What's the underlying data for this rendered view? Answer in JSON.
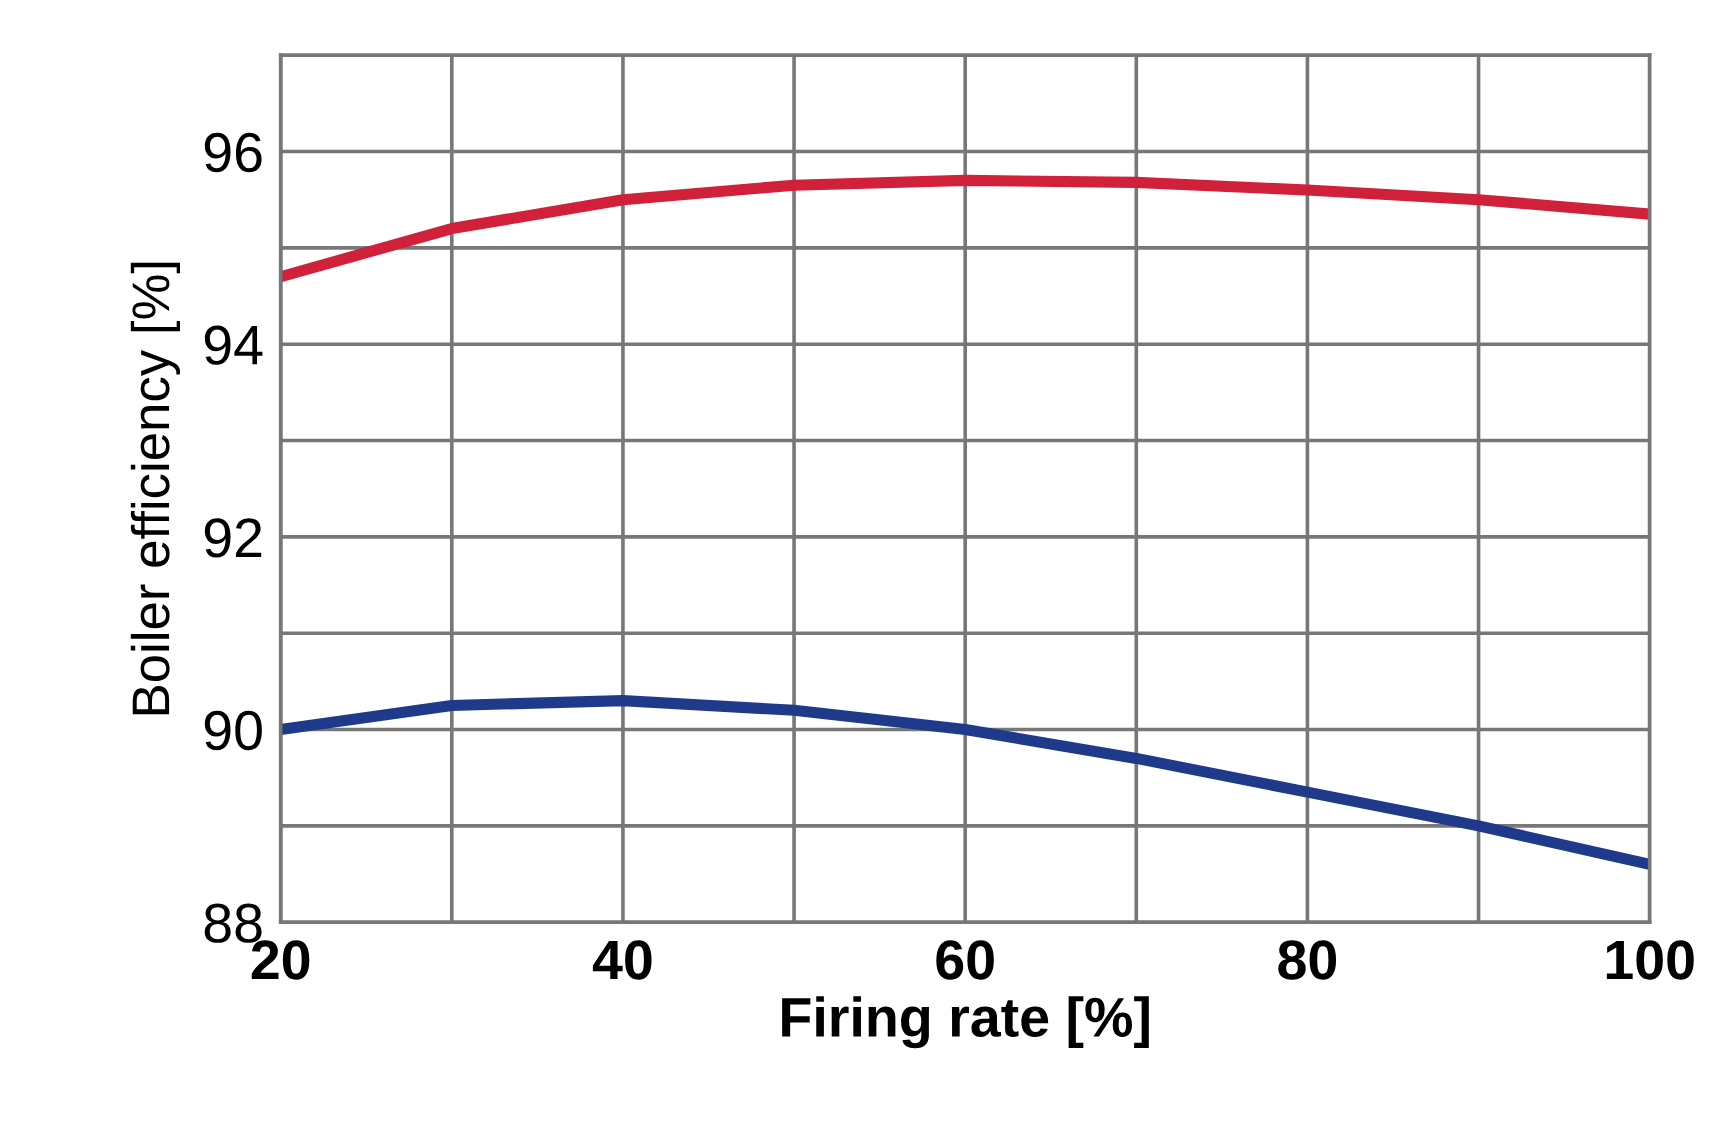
{
  "chart_data": {
    "type": "line",
    "xlabel": "Firing rate [%]",
    "ylabel": "Boiler efficiency [%]",
    "x": [
      20,
      30,
      40,
      50,
      60,
      70,
      80,
      90,
      100
    ],
    "series": [
      {
        "color": "#d0203a",
        "values": [
          94.7,
          95.2,
          95.5,
          95.65,
          95.7,
          95.68,
          95.6,
          95.5,
          95.35
        ]
      },
      {
        "color": "#1f3a8a",
        "values": [
          90.0,
          90.25,
          90.3,
          90.2,
          90.0,
          89.7,
          89.35,
          89.0,
          88.6
        ]
      }
    ],
    "xlim": [
      20,
      100
    ],
    "xticks": [
      20,
      40,
      60,
      80,
      100
    ],
    "ylim": [
      88,
      97
    ],
    "yticks": [
      88,
      90,
      92,
      94,
      96
    ],
    "grid": true,
    "marker": "none",
    "line_style": "solid",
    "legend": false
  }
}
